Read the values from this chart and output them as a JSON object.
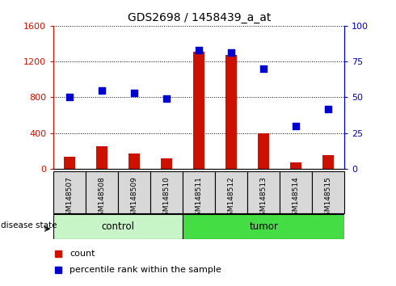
{
  "title": "GDS2698 / 1458439_a_at",
  "samples": [
    "GSM148507",
    "GSM148508",
    "GSM148509",
    "GSM148510",
    "GSM148511",
    "GSM148512",
    "GSM148513",
    "GSM148514",
    "GSM148515"
  ],
  "counts": [
    130,
    250,
    170,
    120,
    1310,
    1270,
    400,
    70,
    150
  ],
  "percentile": [
    50,
    55,
    53,
    49,
    83,
    81,
    70,
    30,
    42
  ],
  "groups": [
    "control",
    "control",
    "control",
    "control",
    "tumor",
    "tumor",
    "tumor",
    "tumor",
    "tumor"
  ],
  "control_color": "#c8f5c8",
  "tumor_color": "#44dd44",
  "bar_color": "#cc1100",
  "dot_color": "#0000cc",
  "left_ylim": [
    0,
    1600
  ],
  "right_ylim": [
    0,
    100
  ],
  "left_yticks": [
    0,
    400,
    800,
    1200,
    1600
  ],
  "right_yticks": [
    0,
    25,
    50,
    75,
    100
  ],
  "left_tick_labels": [
    "0",
    "400",
    "800",
    "1200",
    "1600"
  ],
  "right_tick_labels": [
    "0",
    "25",
    "50",
    "75",
    "100"
  ],
  "left_color": "#cc1100",
  "right_color": "#0000cc",
  "legend_count": "count",
  "legend_percentile": "percentile rank within the sample",
  "disease_state_label": "disease state",
  "control_label": "control",
  "tumor_label": "tumor",
  "n_control": 4,
  "n_tumor": 5,
  "bar_width": 0.35
}
